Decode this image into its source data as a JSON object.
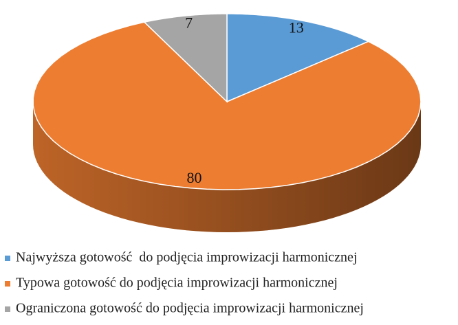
{
  "chart_data": {
    "type": "pie3d",
    "categories": [
      "Najwyższa gotowość  do podjęcia improwizacji harmonicznej",
      "Typowa gotowość do podjęcia improwizacji harmonicznej",
      "Ograniczona gotowość do podjęcia improwizacji harmonicznej"
    ],
    "values": [
      13,
      80,
      7
    ],
    "colors": [
      "#5b9bd5",
      "#ed7d31",
      "#a5a5a5"
    ],
    "legend": "bottom"
  }
}
